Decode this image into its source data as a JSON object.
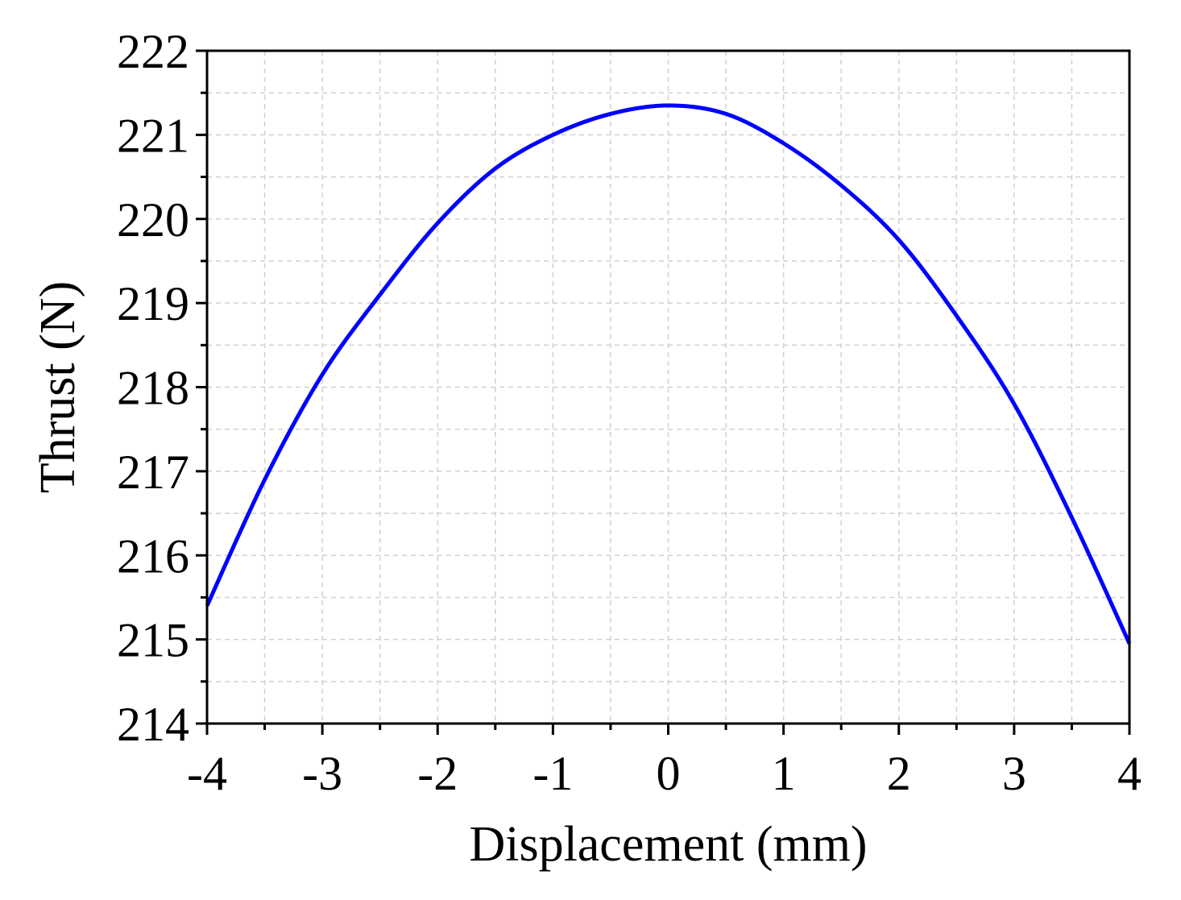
{
  "chart_data": {
    "type": "line",
    "title": "",
    "xlabel": "Displacement (mm)",
    "ylabel": "Thrust (N)",
    "xlim": [
      -4,
      4
    ],
    "ylim": [
      214,
      222
    ],
    "x_ticks": [
      -4,
      -3,
      -2,
      -1,
      0,
      1,
      2,
      3,
      4
    ],
    "y_ticks": [
      214,
      215,
      216,
      217,
      218,
      219,
      220,
      221,
      222
    ],
    "x_tick_labels": [
      "-4",
      "-3",
      "-2",
      "-1",
      "0",
      "1",
      "2",
      "3",
      "4"
    ],
    "y_tick_labels": [
      "214",
      "215",
      "216",
      "217",
      "218",
      "219",
      "220",
      "221",
      "222"
    ],
    "grid": true,
    "legend": "none",
    "series": [
      {
        "color": "#0000ff",
        "x": [
          -4.0,
          -3.5,
          -3.0,
          -2.5,
          -2.0,
          -1.5,
          -1.0,
          -0.5,
          0.0,
          0.5,
          1.0,
          1.5,
          2.0,
          2.5,
          3.0,
          3.5,
          4.0
        ],
        "y": [
          215.4,
          216.9,
          218.15,
          219.1,
          219.95,
          220.6,
          221.0,
          221.25,
          221.35,
          221.25,
          220.9,
          220.4,
          219.75,
          218.85,
          217.8,
          216.45,
          214.95
        ]
      }
    ]
  }
}
